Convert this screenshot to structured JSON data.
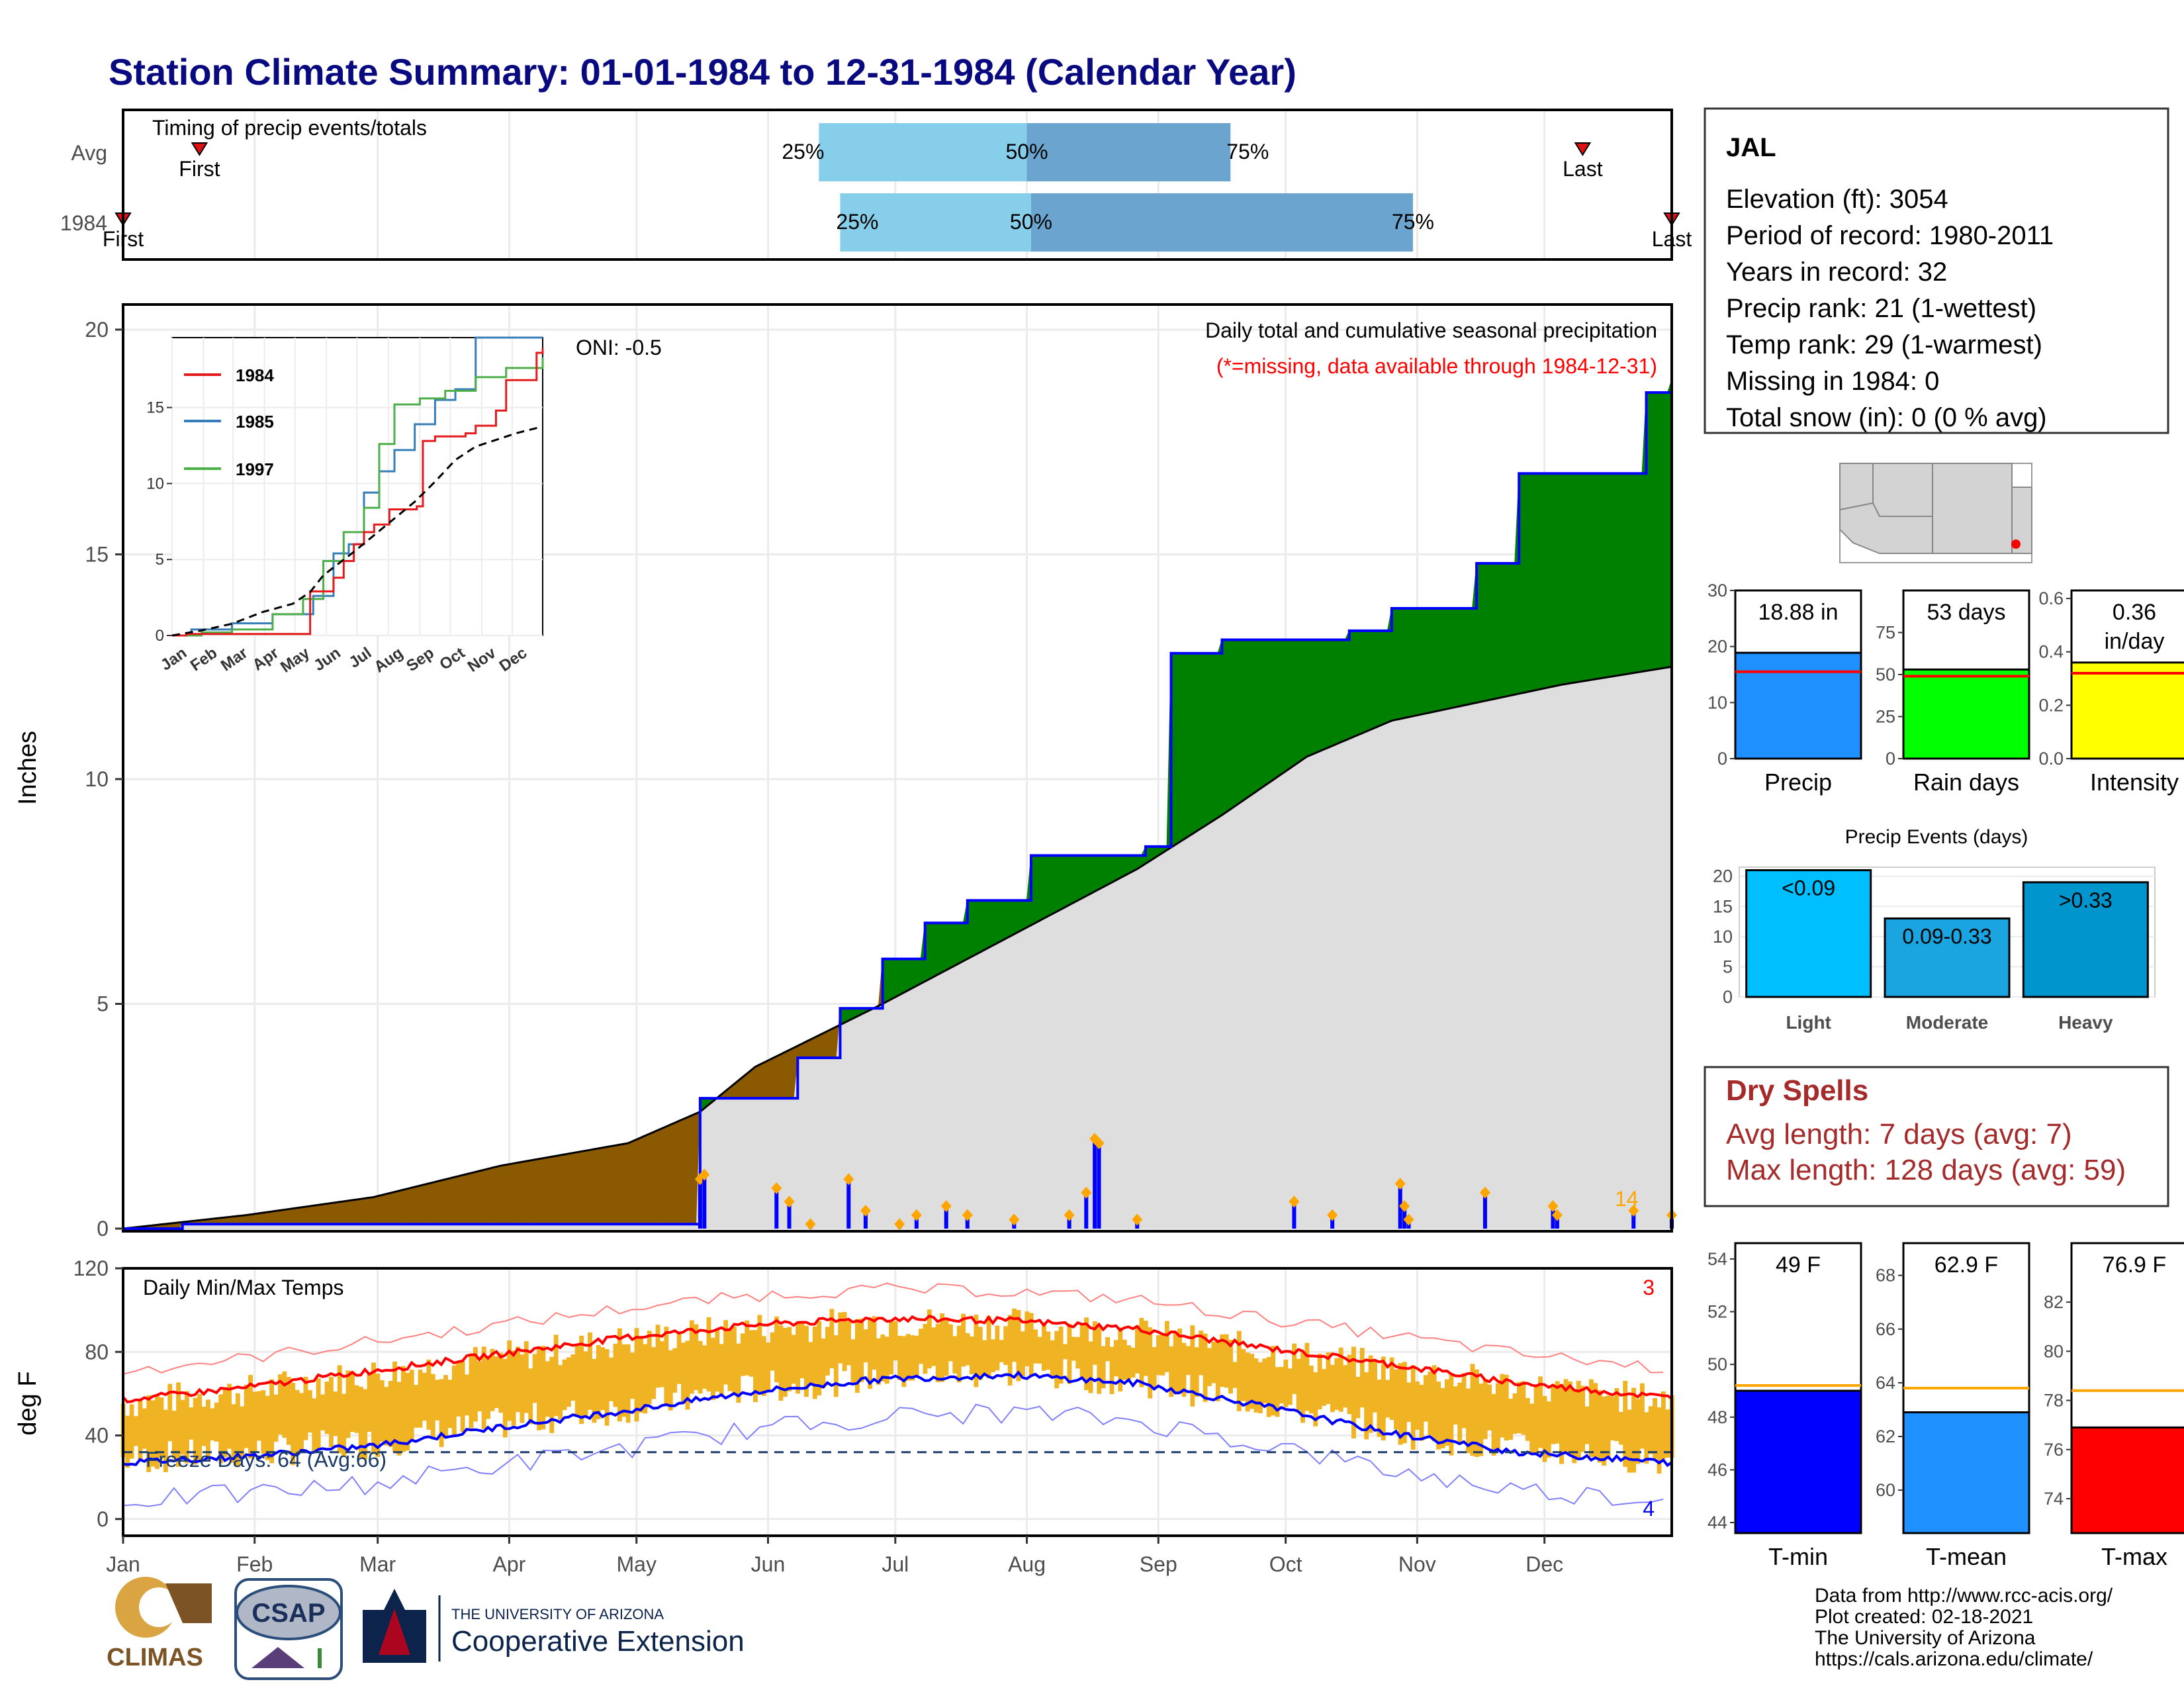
{
  "title": "Station Climate Summary: 01-01-1984 to 12-31-1984 (Calendar Year)",
  "timing": {
    "label": "Timing of precip events/totals",
    "rows": [
      {
        "name": "Avg",
        "first_label": "First",
        "last_label": "Last",
        "first_doy": 19,
        "last_doy": 345,
        "q25_doy": 165,
        "q50_doy": 214,
        "q75_doy": 262,
        "q25": "25%",
        "q50": "50%",
        "q75": "75%"
      },
      {
        "name": "1984",
        "first_label": "First",
        "last_label": "Last",
        "first_doy": 1,
        "last_doy": 366,
        "q25_doy": 170,
        "q50_doy": 215,
        "q75_doy": 305,
        "q25": "25%",
        "q50": "50%",
        "q75": "75%"
      }
    ]
  },
  "precip_panel": {
    "ylabel": "Inches",
    "oni": "ONI: -0.5",
    "header": "Daily total and cumulative seasonal precipitation",
    "note": "(*=missing, data available through 1984-12-31)",
    "count_label": "14"
  },
  "inset": {
    "legend": [
      "1984",
      "1985",
      "1997"
    ],
    "colors": {
      "1984": "#e41a1c",
      "1985": "#377eb8",
      "1997": "#4daf4a",
      "avg": "#000000"
    },
    "months": [
      "Jan",
      "Feb",
      "Mar",
      "Apr",
      "May",
      "Jun",
      "Jul",
      "Aug",
      "Sep",
      "Oct",
      "Nov",
      "Dec"
    ],
    "yticks": [
      "0",
      "5",
      "10",
      "15"
    ]
  },
  "temp_panel": {
    "label": "Daily Min/Max Temps",
    "ylabel": "deg F",
    "freeze": "Freeze Days: 64 (Avg:66)",
    "high_count": "3",
    "low_count": "4",
    "yticks": [
      "0",
      "40",
      "80",
      "120"
    ]
  },
  "months": [
    "Jan",
    "Feb",
    "Mar",
    "Apr",
    "May",
    "Jun",
    "Jul",
    "Aug",
    "Sep",
    "Oct",
    "Nov",
    "Dec"
  ],
  "station": {
    "name": "JAL",
    "lines": [
      "Elevation (ft): 3054",
      "Period of record: 1980-2011",
      "Years in record: 32",
      "Precip rank: 21 (1-wettest)",
      "Temp rank: 29 (1-warmest)",
      "Missing in 1984: 0",
      "Total snow (in): 0 (0 % avg)"
    ]
  },
  "bars_precip": [
    {
      "label": "Precip",
      "value_text": "18.88 in",
      "value": 18.88,
      "avg": 15.5,
      "ymax": 30,
      "ticks": [
        "0",
        "10",
        "20",
        "30"
      ],
      "color": "#1e90ff"
    },
    {
      "label": "Rain days",
      "value_text": "53 days",
      "value": 53,
      "avg": 49,
      "ymax": 100,
      "ticks": [
        "0",
        "25",
        "50",
        "75"
      ],
      "color": "#00ff00"
    },
    {
      "label": "Intensity",
      "value_text": "0.36 in/day",
      "value": 0.36,
      "avg": 0.32,
      "ymax": 0.63,
      "ticks": [
        "0.0",
        "0.2",
        "0.4",
        "0.6"
      ],
      "color": "#ffff00"
    }
  ],
  "precip_events": {
    "title": "Precip Events (days)",
    "categories": [
      "Light",
      "Moderate",
      "Heavy"
    ],
    "bar_labels": [
      "<0.09",
      "0.09-0.33",
      ">0.33"
    ],
    "values": [
      21,
      13,
      19
    ],
    "colors": [
      "#00bfff",
      "#1ba5e0",
      "#0095cc"
    ],
    "yticks": [
      "0",
      "5",
      "10",
      "15",
      "20"
    ]
  },
  "dry_spells": {
    "title": "Dry Spells",
    "avg": "Avg length: 7 days (avg: 7)",
    "max": "Max length: 128 days (avg: 59)"
  },
  "bars_temp": [
    {
      "label": "T-min",
      "value_text": "49 F",
      "value": 49,
      "avg": 49.2,
      "ymin": 43.6,
      "ymax": 54.6,
      "ticks": [
        "44",
        "46",
        "48",
        "50",
        "52",
        "54"
      ],
      "color": "#0000ff"
    },
    {
      "label": "T-mean",
      "value_text": "62.9 F",
      "value": 62.9,
      "avg": 63.8,
      "ymin": 58.4,
      "ymax": 69.2,
      "ticks": [
        "60",
        "62",
        "64",
        "66",
        "68"
      ],
      "color": "#1e90ff"
    },
    {
      "label": "T-max",
      "value_text": "76.9 F",
      "value": 76.9,
      "avg": 78.4,
      "ymin": 72.6,
      "ymax": 84.4,
      "ticks": [
        "74",
        "76",
        "78",
        "80",
        "82"
      ],
      "color": "#ff0000"
    }
  ],
  "footer": {
    "lines": [
      "Data from http://www.rcc-acis.org/",
      "Plot created: 02-18-2021",
      "The University of Arizona",
      "https://cals.arizona.edu/climate/"
    ],
    "logo_climas": "CLIMAS",
    "logo_csap": "CSAP",
    "ua_small": "THE UNIVERSITY OF ARIZONA",
    "ua_big": "Cooperative Extension"
  },
  "chart_data": [
    {
      "type": "area",
      "title": "Daily total and cumulative seasonal precipitation",
      "ylabel": "Inches",
      "ylim": [
        0,
        20.5
      ],
      "x_unit": "day of year 1984",
      "cumulative_1984": [
        [
          1,
          0
        ],
        [
          15,
          0.1
        ],
        [
          135,
          0.1
        ],
        [
          137,
          2.9
        ],
        [
          150,
          2.9
        ],
        [
          160,
          3.8
        ],
        [
          170,
          4.9
        ],
        [
          180,
          6.0
        ],
        [
          190,
          6.8
        ],
        [
          200,
          7.3
        ],
        [
          215,
          8.3
        ],
        [
          242,
          8.5
        ],
        [
          248,
          12.8
        ],
        [
          260,
          13.1
        ],
        [
          290,
          13.3
        ],
        [
          300,
          13.8
        ],
        [
          320,
          14.8
        ],
        [
          330,
          16.8
        ],
        [
          360,
          18.6
        ],
        [
          366,
          18.88
        ]
      ],
      "avg_cumulative": [
        [
          1,
          0
        ],
        [
          30,
          0.3
        ],
        [
          60,
          0.7
        ],
        [
          90,
          1.4
        ],
        [
          120,
          1.9
        ],
        [
          137,
          2.6
        ],
        [
          150,
          3.6
        ],
        [
          180,
          5.0
        ],
        [
          210,
          6.5
        ],
        [
          240,
          8.0
        ],
        [
          260,
          9.2
        ],
        [
          280,
          10.5
        ],
        [
          300,
          11.3
        ],
        [
          320,
          11.7
        ],
        [
          340,
          12.1
        ],
        [
          366,
          12.5
        ]
      ],
      "daily_1984": [
        [
          137,
          1.1
        ],
        [
          138,
          1.2
        ],
        [
          155,
          0.9
        ],
        [
          158,
          0.6
        ],
        [
          163,
          0.1
        ],
        [
          172,
          1.1
        ],
        [
          176,
          0.4
        ],
        [
          184,
          0.1
        ],
        [
          188,
          0.3
        ],
        [
          195,
          0.5
        ],
        [
          200,
          0.3
        ],
        [
          211,
          0.2
        ],
        [
          224,
          0.3
        ],
        [
          228,
          0.8
        ],
        [
          230,
          2.0
        ],
        [
          231,
          1.9
        ],
        [
          240,
          0.2
        ],
        [
          277,
          0.6
        ],
        [
          286,
          0.3
        ],
        [
          302,
          1.0
        ],
        [
          303,
          0.5
        ],
        [
          304,
          0.2
        ],
        [
          322,
          0.8
        ],
        [
          338,
          0.5
        ],
        [
          339,
          0.3
        ],
        [
          357,
          0.4
        ],
        [
          366,
          0.3
        ]
      ]
    },
    {
      "type": "line",
      "title": "Daily Min/Max Temps",
      "ylabel": "deg F",
      "ylim": [
        -8,
        120
      ],
      "avg_max": [
        [
          1,
          57
        ],
        [
          30,
          63
        ],
        [
          60,
          71
        ],
        [
          90,
          79
        ],
        [
          120,
          87
        ],
        [
          150,
          93
        ],
        [
          180,
          96
        ],
        [
          210,
          95
        ],
        [
          240,
          91
        ],
        [
          270,
          82
        ],
        [
          300,
          74
        ],
        [
          330,
          65
        ],
        [
          366,
          58
        ]
      ],
      "avg_min": [
        [
          1,
          27
        ],
        [
          30,
          30
        ],
        [
          60,
          35
        ],
        [
          90,
          44
        ],
        [
          120,
          52
        ],
        [
          150,
          61
        ],
        [
          180,
          67
        ],
        [
          210,
          69
        ],
        [
          240,
          65
        ],
        [
          270,
          54
        ],
        [
          300,
          41
        ],
        [
          330,
          32
        ],
        [
          366,
          27
        ]
      ],
      "freeze_line": 32
    }
  ]
}
